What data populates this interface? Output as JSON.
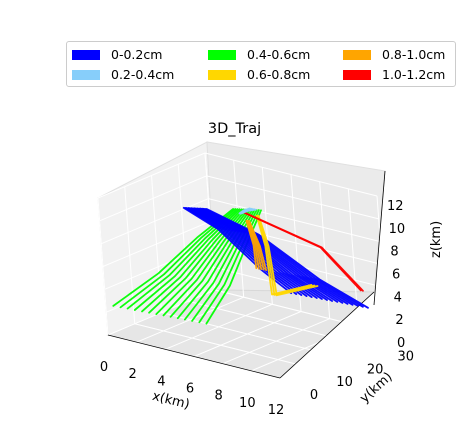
{
  "chart_data": {
    "type": "line",
    "title": "3D_Traj",
    "xlabel": "x(km)",
    "ylabel": "y(km)",
    "zlabel": "z(km)",
    "x_ticks": [
      "0",
      "2",
      "4",
      "6",
      "8",
      "10",
      "12"
    ],
    "y_ticks": [
      "0",
      "10",
      "20",
      "30"
    ],
    "z_ticks": [
      "0",
      "2",
      "4",
      "6",
      "8",
      "10",
      "12"
    ],
    "xlim": [
      0,
      12
    ],
    "ylim": [
      0,
      35
    ],
    "zlim": [
      0,
      12
    ],
    "legend_position": "top",
    "grid": true,
    "series": [
      {
        "name": "0-0.2cm",
        "color": "#0000ff",
        "x": [
          3.5,
          6,
          9,
          11
        ],
        "y": [
          15,
          17,
          19,
          22
        ],
        "z": [
          10.5,
          9,
          6,
          4
        ]
      },
      {
        "name": "0.2-0.4cm",
        "color": "#87cefa",
        "x": [
          6.0,
          6.3,
          6.7
        ],
        "y": [
          18,
          18.5,
          19
        ],
        "z": [
          10.5,
          10.8,
          11
        ]
      },
      {
        "name": "0.4-0.6cm",
        "color": "#00ff00",
        "x": [
          6.5,
          5,
          3.5,
          2
        ],
        "y": [
          18,
          16,
          13,
          8
        ],
        "z": [
          11,
          8,
          4.5,
          1.5
        ]
      },
      {
        "name": "0.6-0.8cm",
        "color": "#ffd700",
        "x": [
          7,
          7.5,
          8,
          10
        ],
        "y": [
          19,
          19,
          18,
          22
        ],
        "z": [
          10.5,
          8,
          4,
          5
        ]
      },
      {
        "name": "0.8-1.0cm",
        "color": "#ffa500",
        "x": [
          6.5,
          7,
          7.2
        ],
        "y": [
          18,
          18,
          18
        ],
        "z": [
          10,
          8,
          6
        ]
      },
      {
        "name": "1.0-1.2cm",
        "color": "#ff0000",
        "x": [
          6,
          10,
          12
        ],
        "y": [
          19,
          25,
          28
        ],
        "z": [
          10.5,
          8,
          4.5
        ]
      }
    ]
  }
}
